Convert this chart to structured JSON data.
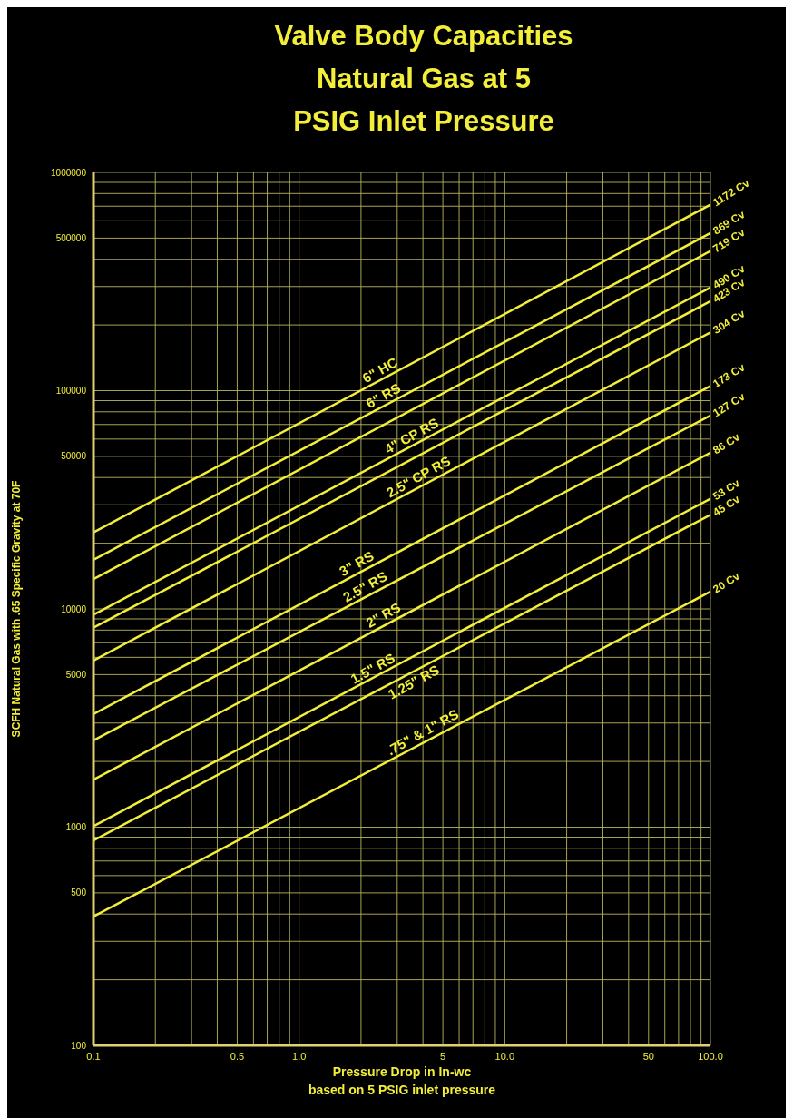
{
  "chart_data": {
    "type": "line",
    "title": "Valve Body Capacities\nNatural Gas at 5\nPSIG Inlet Pressure",
    "xlabel": "Pressure Drop in In-wc\nbased on 5 PSIG inlet pressure",
    "ylabel": "SCFH Natural Gas with .65 Specific Gravity at 70F",
    "log": "xy",
    "grid": true,
    "legend": false,
    "marker": "none",
    "line_style": "solid",
    "xlim": [
      0.1,
      100
    ],
    "ylim": [
      100,
      1000000
    ],
    "xticks": [
      0.1,
      {
        "value": 0.2,
        "label": null
      },
      {
        "value": 0.3,
        "label": null
      },
      {
        "value": 0.4,
        "label": null
      },
      0.5,
      {
        "value": 0.6,
        "label": null
      },
      {
        "value": 0.7,
        "label": null
      },
      {
        "value": 0.8,
        "label": null
      },
      {
        "value": 0.9,
        "label": null
      },
      {
        "value": 1,
        "label": "1.0"
      },
      {
        "value": 2,
        "label": null
      },
      {
        "value": 3,
        "label": null
      },
      {
        "value": 4,
        "label": null
      },
      5,
      {
        "value": 6,
        "label": null
      },
      {
        "value": 7,
        "label": null
      },
      {
        "value": 8,
        "label": null
      },
      {
        "value": 9,
        "label": null
      },
      {
        "value": 10,
        "label": "10.0"
      },
      {
        "value": 20,
        "label": null
      },
      {
        "value": 30,
        "label": null
      },
      {
        "value": 40,
        "label": null
      },
      50,
      {
        "value": 60,
        "label": null
      },
      {
        "value": 70,
        "label": null
      },
      {
        "value": 80,
        "label": null
      },
      {
        "value": 90,
        "label": null
      },
      {
        "value": 100,
        "label": "100.0"
      }
    ],
    "yticks": [
      100,
      {
        "value": 200,
        "label": null
      },
      {
        "value": 300,
        "label": null
      },
      {
        "value": 400,
        "label": null
      },
      500,
      {
        "value": 600,
        "label": null
      },
      {
        "value": 700,
        "label": null
      },
      {
        "value": 800,
        "label": null
      },
      {
        "value": 900,
        "label": null
      },
      1000,
      {
        "value": 2000,
        "label": null
      },
      {
        "value": 3000,
        "label": null
      },
      {
        "value": 4000,
        "label": null
      },
      5000,
      {
        "value": 6000,
        "label": null
      },
      {
        "value": 7000,
        "label": null
      },
      {
        "value": 8000,
        "label": null
      },
      {
        "value": 9000,
        "label": null
      },
      10000,
      {
        "value": 20000,
        "label": null
      },
      {
        "value": 30000,
        "label": null
      },
      {
        "value": 40000,
        "label": null
      },
      50000,
      {
        "value": 60000,
        "label": null
      },
      {
        "value": 70000,
        "label": null
      },
      {
        "value": 80000,
        "label": null
      },
      {
        "value": 90000,
        "label": null
      },
      100000,
      {
        "value": 200000,
        "label": null
      },
      {
        "value": 300000,
        "label": null
      },
      {
        "value": 400000,
        "label": null
      },
      500000,
      {
        "value": 600000,
        "label": null
      },
      {
        "value": 700000,
        "label": null
      },
      {
        "value": 800000,
        "label": null
      },
      {
        "value": 900000,
        "label": null
      },
      1000000
    ],
    "x": [
      0.1,
      100
    ],
    "series": [
      {
        "name": "1172 Cv",
        "color": "#f2ee3a",
        "values": [
          22400,
          711000
        ]
      },
      {
        "name": "869 Cv",
        "color": "#f2ee3a",
        "values": [
          16800,
          527000
        ]
      },
      {
        "name": "719 Cv",
        "color": "#f2ee3a",
        "values": [
          13700,
          436000
        ]
      },
      {
        "name": "490 Cv",
        "color": "#f2ee3a",
        "values": [
          9400,
          297000
        ]
      },
      {
        "name": "423 Cv",
        "color": "#f2ee3a",
        "values": [
          8200,
          257000
        ]
      },
      {
        "name": "304 Cv",
        "color": "#f2ee3a",
        "values": [
          5800,
          185000
        ]
      },
      {
        "name": "173 Cv",
        "color": "#f2ee3a",
        "values": [
          3300,
          105000
        ]
      },
      {
        "name": "127 Cv",
        "color": "#f2ee3a",
        "values": [
          2500,
          77000
        ]
      },
      {
        "name": "86 Cv",
        "color": "#f2ee3a",
        "values": [
          1650,
          52000
        ]
      },
      {
        "name": "53 Cv",
        "color": "#f2ee3a",
        "values": [
          1010,
          32000
        ]
      },
      {
        "name": "45 Cv",
        "color": "#f2ee3a",
        "values": [
          870,
          27000
        ]
      },
      {
        "name": "20 Cv",
        "color": "#f2ee3a",
        "values": [
          390,
          12000
        ]
      }
    ],
    "annotations": [
      {
        "text": "6\" HC",
        "x": 2.6,
        "y": 114000
      },
      {
        "text": "6\" RS",
        "x": 2.7,
        "y": 87000
      },
      {
        "text": "4\" CP RS",
        "x": 3.7,
        "y": 57000
      },
      {
        "text": "2.5\" CP RS",
        "x": 4,
        "y": 37000
      },
      {
        "text": "3\" RS",
        "x": 2,
        "y": 14800
      },
      {
        "text": "2.5\" RS",
        "x": 2.2,
        "y": 11600
      },
      {
        "text": "2\" RS",
        "x": 2.7,
        "y": 8600
      },
      {
        "text": "1.5\" RS",
        "x": 2.4,
        "y": 4900
      },
      {
        "text": "1.25\" RS",
        "x": 3.4,
        "y": 5100
      },
      {
        "text": ".75\" & 1\" RS",
        "x": 4.2,
        "y": 2500
      }
    ]
  }
}
